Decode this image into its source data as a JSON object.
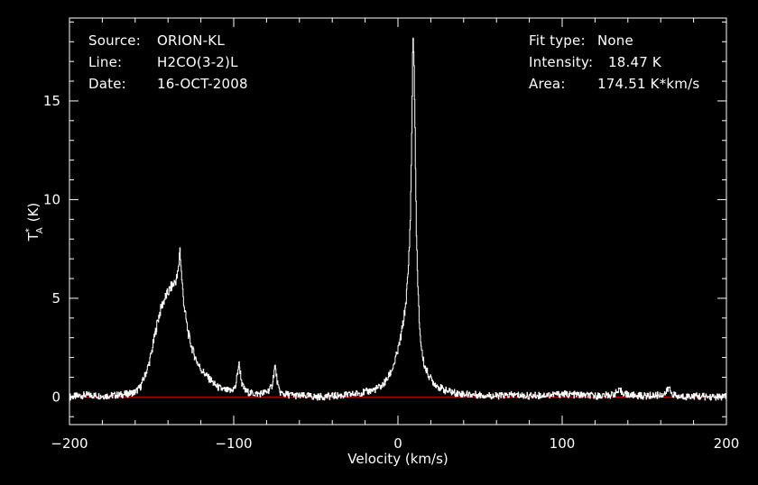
{
  "header": {
    "source_label": "Source:",
    "source_value": "ORION-KL",
    "line_label": "Line:",
    "line_value": "H2CO(3-2)L",
    "date_label": "Date:",
    "date_value": "16-OCT-2008",
    "fit_label": "Fit type:",
    "fit_value": "None",
    "intensity_label": "Intensity:",
    "intensity_value": "18.47 K",
    "area_label": "Area:",
    "area_value": "174.51 K*km/s"
  },
  "chart_data": {
    "type": "line",
    "xlabel": "Velocity (km/s)",
    "ylabel": "T",
    "ylabel_sub": "A",
    "ylabel_sup": "*",
    "ylabel_unit": "(K)",
    "xlim": [
      -200,
      200
    ],
    "ylim": [
      -1.4,
      19.2
    ],
    "xticks": [
      -200,
      -100,
      0,
      100,
      200
    ],
    "yticks": [
      0,
      5,
      10,
      15
    ],
    "grid": false,
    "colors": {
      "background": "#000000",
      "spectrum": "#ffffff",
      "baseline": "#cc0000",
      "frame": "#ffffff"
    },
    "baseline_value": 0,
    "series": [
      {
        "x": [
          -200,
          -190,
          -180,
          -170,
          -165,
          -160,
          -157,
          -155,
          -152,
          -150,
          -148,
          -146,
          -144,
          -142,
          -140,
          -138,
          -136,
          -134.5,
          -133.5,
          -133,
          -132.5,
          -132,
          -131,
          -130,
          -128,
          -126,
          -124,
          -122,
          -120,
          -118,
          -116,
          -114,
          -112,
          -110,
          -106,
          -102,
          -99,
          -98,
          -97,
          -96,
          -95,
          -93,
          -90,
          -85,
          -80,
          -77,
          -76,
          -75,
          -74,
          -73,
          -72,
          -70,
          -65,
          -60,
          -55,
          -50,
          -40,
          -30,
          -20,
          -15,
          -10,
          -8,
          -6,
          -4,
          -2,
          0,
          2,
          4,
          5,
          6,
          7,
          7.5,
          8,
          8.5,
          9,
          9.5,
          10,
          10.5,
          11,
          11.5,
          12,
          13,
          14,
          15,
          16,
          18,
          20,
          22,
          25,
          28,
          30,
          35,
          40,
          50,
          60,
          70,
          80,
          90,
          100,
          110,
          120,
          130,
          135,
          140,
          150,
          160,
          163,
          165,
          166,
          168,
          170,
          180,
          190,
          200
        ],
        "y": [
          0.0,
          0.1,
          0.05,
          0.1,
          0.15,
          0.25,
          0.5,
          0.9,
          1.6,
          2.3,
          3.2,
          4.0,
          4.6,
          5.0,
          5.3,
          5.6,
          5.8,
          6.1,
          6.6,
          7.7,
          7.0,
          6.3,
          5.2,
          4.4,
          3.3,
          2.6,
          2.1,
          1.7,
          1.4,
          1.2,
          1.0,
          0.85,
          0.65,
          0.5,
          0.35,
          0.3,
          0.5,
          1.1,
          1.7,
          1.2,
          0.6,
          0.3,
          0.2,
          0.15,
          0.25,
          0.5,
          1.0,
          1.6,
          1.0,
          0.45,
          0.25,
          0.15,
          0.1,
          0.05,
          0.05,
          0.0,
          0.05,
          0.1,
          0.25,
          0.35,
          0.55,
          0.75,
          1.0,
          1.35,
          1.8,
          2.4,
          3.2,
          4.3,
          5.1,
          6.2,
          8.0,
          9.4,
          11.6,
          14.8,
          18.47,
          17.5,
          15.3,
          12.0,
          9.0,
          7.0,
          5.5,
          3.6,
          2.6,
          2.0,
          1.6,
          1.2,
          0.9,
          0.7,
          0.5,
          0.35,
          0.3,
          0.2,
          0.15,
          0.1,
          0.05,
          0.1,
          0.05,
          0.1,
          0.15,
          0.1,
          0.05,
          0.1,
          0.3,
          0.1,
          0.05,
          0.1,
          0.2,
          0.5,
          0.25,
          0.1,
          0.0,
          0.05,
          0.0,
          0.0
        ]
      }
    ]
  }
}
